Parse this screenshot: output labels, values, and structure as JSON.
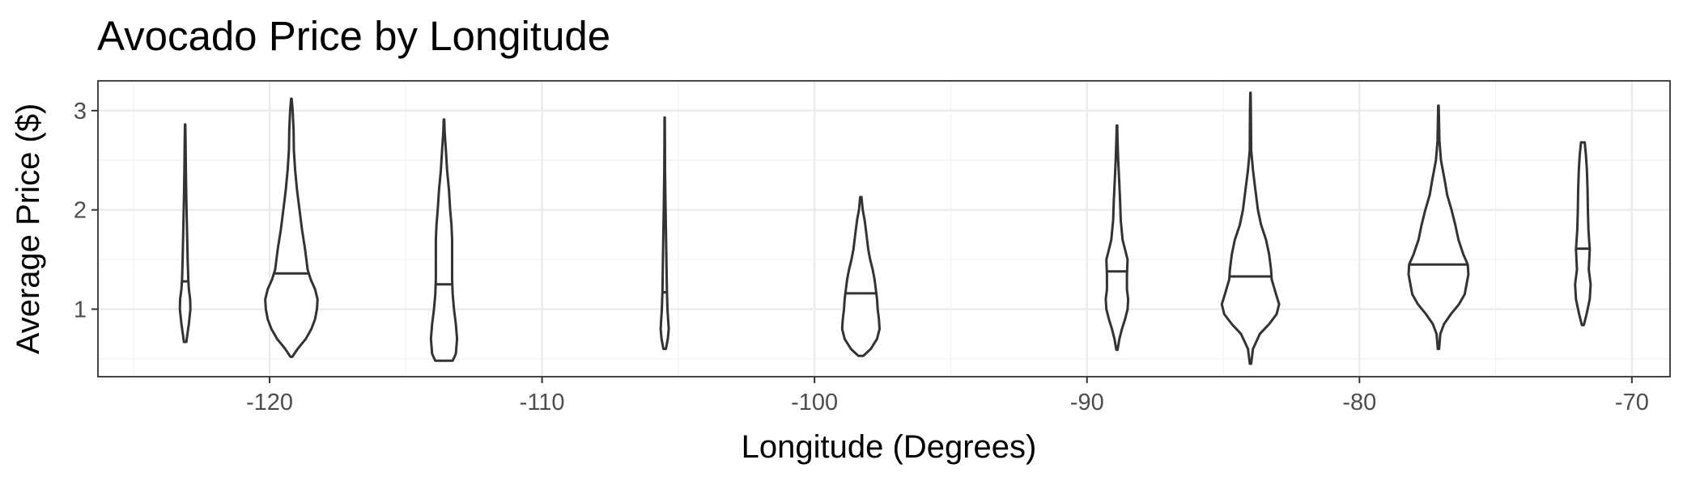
{
  "chart_data": {
    "type": "violin",
    "title": "Avocado Price by Longitude",
    "xlabel": "Longitude (Degrees)",
    "ylabel": "Average Price ($)",
    "xlim": [
      -126.3,
      -68.6
    ],
    "ylim": [
      0.32,
      3.3
    ],
    "x_ticks": [
      -120,
      -110,
      -100,
      -90,
      -80,
      -70
    ],
    "x_tick_labels": [
      "-120",
      "-110",
      "-100",
      "-90",
      "-80",
      "-70"
    ],
    "y_ticks": [
      1,
      2,
      3
    ],
    "y_tick_labels": [
      "1",
      "2",
      "3"
    ],
    "grid": true,
    "legend": "none",
    "violins": [
      {
        "x": -123.1,
        "min": 0.67,
        "max": 2.86,
        "median": 1.28,
        "profile": [
          [
            0.67,
            0.2
          ],
          [
            0.72,
            0.3
          ],
          [
            0.85,
            0.6
          ],
          [
            1.0,
            0.85
          ],
          [
            1.1,
            0.8
          ],
          [
            1.2,
            0.6
          ],
          [
            1.3,
            0.5
          ],
          [
            1.5,
            0.4
          ],
          [
            1.8,
            0.3
          ],
          [
            2.1,
            0.2
          ],
          [
            2.4,
            0.12
          ],
          [
            2.7,
            0.06
          ],
          [
            2.86,
            0.03
          ]
        ]
      },
      {
        "x": -119.2,
        "min": 0.52,
        "max": 3.12,
        "median": 1.36,
        "profile": [
          [
            0.52,
            0.15
          ],
          [
            0.6,
            1.0
          ],
          [
            0.7,
            2.3
          ],
          [
            0.8,
            3.2
          ],
          [
            0.9,
            3.8
          ],
          [
            1.0,
            4.1
          ],
          [
            1.1,
            4.2
          ],
          [
            1.2,
            3.8
          ],
          [
            1.3,
            3.1
          ],
          [
            1.4,
            2.6
          ],
          [
            1.6,
            2.2
          ],
          [
            1.8,
            1.7
          ],
          [
            2.0,
            1.3
          ],
          [
            2.2,
            0.9
          ],
          [
            2.4,
            0.6
          ],
          [
            2.6,
            0.4
          ],
          [
            2.8,
            0.35
          ],
          [
            3.0,
            0.2
          ],
          [
            3.12,
            0.05
          ]
        ]
      },
      {
        "x": -113.6,
        "min": 0.48,
        "max": 2.91,
        "median": 1.25,
        "profile": [
          [
            0.48,
            1.4
          ],
          [
            0.55,
            1.9
          ],
          [
            0.7,
            2.1
          ],
          [
            0.85,
            1.9
          ],
          [
            1.0,
            1.6
          ],
          [
            1.15,
            1.4
          ],
          [
            1.3,
            1.3
          ],
          [
            1.5,
            1.3
          ],
          [
            1.7,
            1.3
          ],
          [
            1.85,
            1.2
          ],
          [
            2.0,
            1.0
          ],
          [
            2.2,
            0.8
          ],
          [
            2.4,
            0.5
          ],
          [
            2.6,
            0.3
          ],
          [
            2.8,
            0.1
          ],
          [
            2.91,
            0.05
          ]
        ]
      },
      {
        "x": -105.5,
        "min": 0.6,
        "max": 2.93,
        "median": 1.17,
        "profile": [
          [
            0.6,
            0.2
          ],
          [
            0.7,
            0.5
          ],
          [
            0.8,
            0.65
          ],
          [
            0.9,
            0.55
          ],
          [
            1.0,
            0.45
          ],
          [
            1.2,
            0.35
          ],
          [
            1.5,
            0.28
          ],
          [
            1.8,
            0.2
          ],
          [
            2.1,
            0.12
          ],
          [
            2.4,
            0.06
          ],
          [
            2.7,
            0.04
          ],
          [
            2.93,
            0.02
          ]
        ]
      },
      {
        "x": -98.3,
        "min": 0.53,
        "max": 2.13,
        "median": 1.16,
        "profile": [
          [
            0.53,
            0.4
          ],
          [
            0.6,
            1.6
          ],
          [
            0.7,
            2.6
          ],
          [
            0.8,
            3.0
          ],
          [
            0.9,
            2.9
          ],
          [
            1.0,
            2.7
          ],
          [
            1.1,
            2.6
          ],
          [
            1.2,
            2.4
          ],
          [
            1.3,
            2.2
          ],
          [
            1.4,
            1.9
          ],
          [
            1.5,
            1.5
          ],
          [
            1.6,
            1.2
          ],
          [
            1.7,
            1.0
          ],
          [
            1.8,
            0.8
          ],
          [
            1.9,
            0.6
          ],
          [
            2.0,
            0.3
          ],
          [
            2.13,
            0.1
          ]
        ]
      },
      {
        "x": -88.9,
        "min": 0.59,
        "max": 2.85,
        "median": 1.38,
        "profile": [
          [
            0.59,
            0.1
          ],
          [
            0.7,
            0.4
          ],
          [
            0.8,
            0.8
          ],
          [
            0.9,
            1.3
          ],
          [
            1.0,
            1.7
          ],
          [
            1.1,
            1.8
          ],
          [
            1.2,
            1.6
          ],
          [
            1.35,
            1.6
          ],
          [
            1.5,
            1.7
          ],
          [
            1.6,
            1.3
          ],
          [
            1.7,
            0.9
          ],
          [
            1.9,
            0.6
          ],
          [
            2.1,
            0.5
          ],
          [
            2.3,
            0.35
          ],
          [
            2.5,
            0.2
          ],
          [
            2.7,
            0.1
          ],
          [
            2.85,
            0.04
          ]
        ]
      },
      {
        "x": -84.0,
        "min": 0.45,
        "max": 3.18,
        "median": 1.33,
        "profile": [
          [
            0.45,
            0.1
          ],
          [
            0.6,
            0.4
          ],
          [
            0.75,
            1.5
          ],
          [
            0.85,
            3.0
          ],
          [
            0.95,
            4.2
          ],
          [
            1.05,
            4.6
          ],
          [
            1.15,
            4.1
          ],
          [
            1.3,
            3.4
          ],
          [
            1.4,
            3.3
          ],
          [
            1.55,
            3.0
          ],
          [
            1.7,
            2.5
          ],
          [
            1.85,
            1.7
          ],
          [
            2.0,
            1.2
          ],
          [
            2.2,
            0.8
          ],
          [
            2.4,
            0.4
          ],
          [
            2.6,
            0.12
          ],
          [
            3.0,
            0.07
          ],
          [
            3.18,
            0.03
          ]
        ]
      },
      {
        "x": -77.1,
        "min": 0.6,
        "max": 3.05,
        "median": 1.45,
        "profile": [
          [
            0.6,
            0.1
          ],
          [
            0.75,
            0.3
          ],
          [
            0.85,
            0.9
          ],
          [
            0.95,
            2.0
          ],
          [
            1.05,
            3.3
          ],
          [
            1.15,
            4.2
          ],
          [
            1.25,
            4.5
          ],
          [
            1.35,
            4.8
          ],
          [
            1.45,
            4.7
          ],
          [
            1.55,
            4.0
          ],
          [
            1.7,
            3.2
          ],
          [
            1.85,
            2.7
          ],
          [
            2.0,
            2.1
          ],
          [
            2.15,
            1.4
          ],
          [
            2.3,
            1.0
          ],
          [
            2.5,
            0.4
          ],
          [
            2.7,
            0.15
          ],
          [
            3.05,
            0.04
          ]
        ]
      },
      {
        "x": -71.8,
        "min": 0.84,
        "max": 2.68,
        "median": 1.61,
        "profile": [
          [
            0.84,
            0.15
          ],
          [
            0.95,
            0.6
          ],
          [
            1.1,
            1.1
          ],
          [
            1.25,
            1.25
          ],
          [
            1.4,
            0.95
          ],
          [
            1.6,
            1.1
          ],
          [
            1.8,
            0.9
          ],
          [
            2.0,
            0.8
          ],
          [
            2.2,
            0.75
          ],
          [
            2.4,
            0.65
          ],
          [
            2.55,
            0.5
          ],
          [
            2.68,
            0.3
          ]
        ]
      }
    ]
  }
}
